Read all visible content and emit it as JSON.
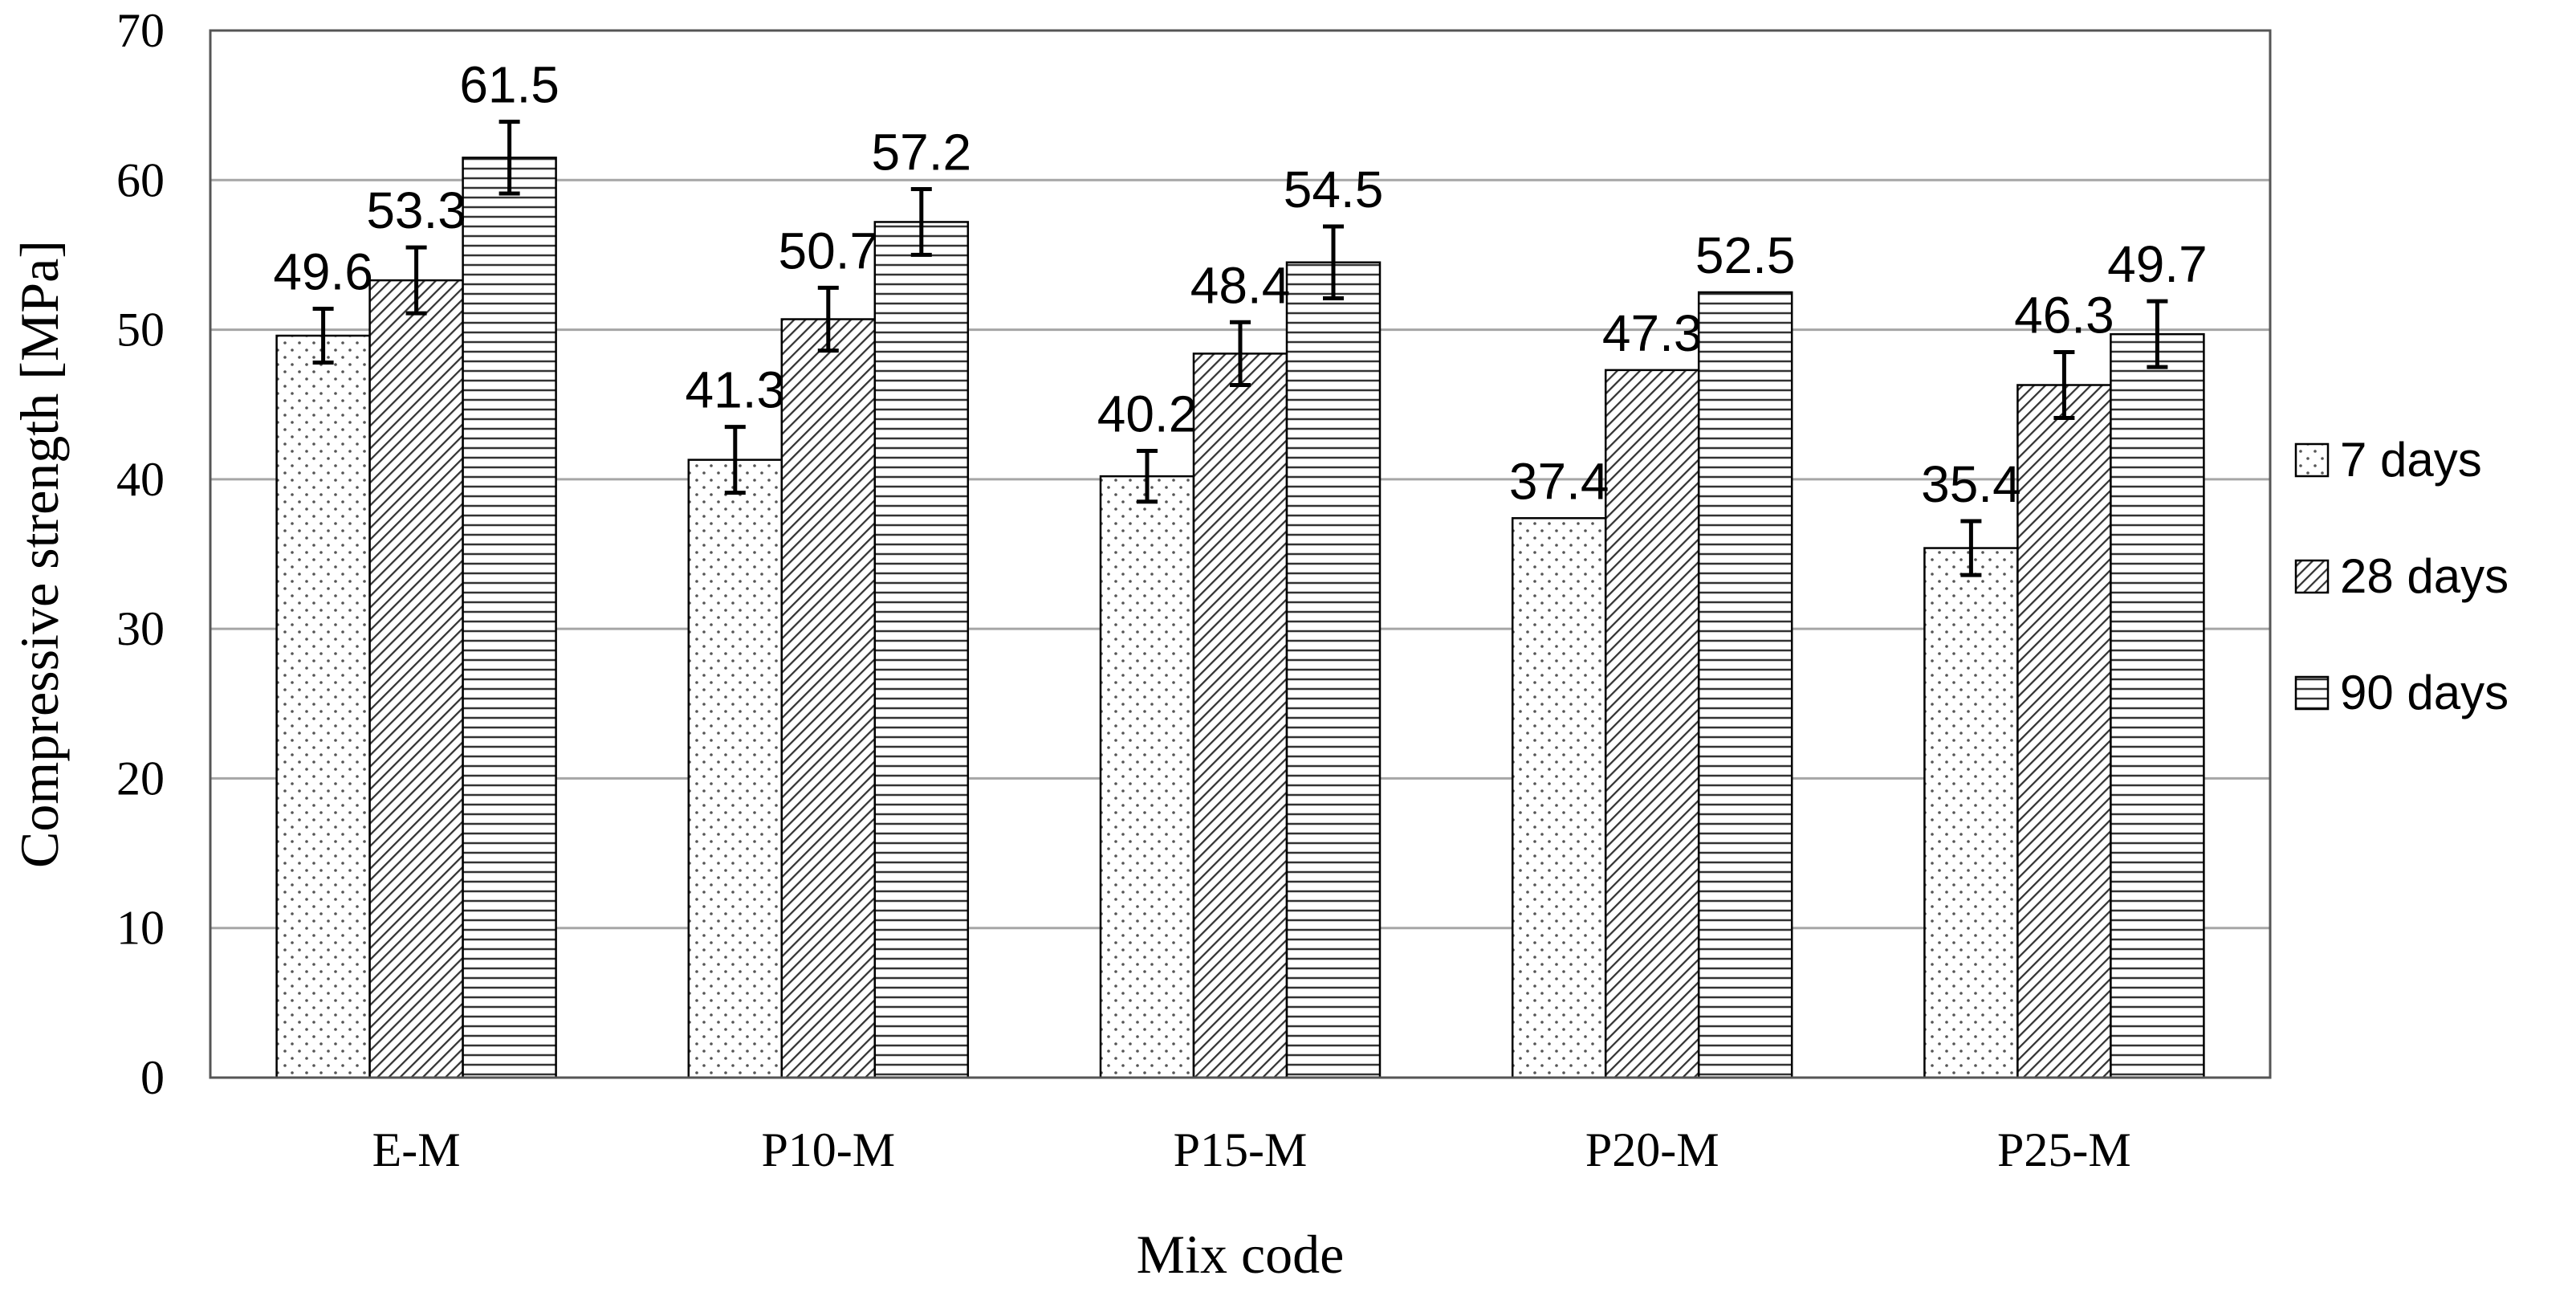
{
  "chart_data": {
    "type": "bar",
    "xlabel": "Mix code",
    "ylabel": "Compressive strength [MPa]",
    "ylim": [
      0,
      70
    ],
    "yticks": [
      0,
      10,
      20,
      30,
      40,
      50,
      60,
      70
    ],
    "grid": true,
    "legend_position": "right",
    "categories": [
      "E-M",
      "P10-M",
      "P15-M",
      "P20-M",
      "P25-M"
    ],
    "series": [
      {
        "name": "7 days",
        "pattern": "dots",
        "values": [
          49.6,
          41.3,
          40.2,
          37.4,
          35.4
        ],
        "error": [
          1.8,
          2.2,
          1.7,
          0,
          1.8
        ]
      },
      {
        "name": "28 days",
        "pattern": "diagonal-hatch",
        "values": [
          53.3,
          50.7,
          48.4,
          47.3,
          46.3
        ],
        "error": [
          2.2,
          2.1,
          2.1,
          0,
          2.2
        ]
      },
      {
        "name": "90 days",
        "pattern": "horizontal-lines",
        "values": [
          61.5,
          57.2,
          54.5,
          52.5,
          49.7
        ],
        "error": [
          2.4,
          2.2,
          2.4,
          0,
          2.2
        ]
      }
    ],
    "colors": {
      "bar_stroke": "#000000",
      "grid": "#a6a6a6",
      "frame": "#555555",
      "pattern": "#555555"
    }
  }
}
